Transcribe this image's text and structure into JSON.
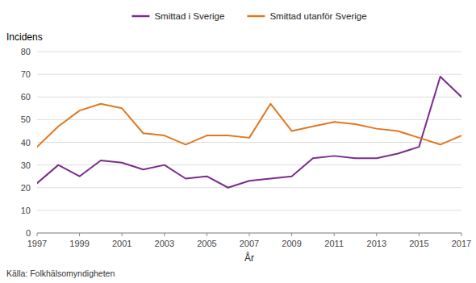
{
  "chart_data": {
    "type": "line",
    "ylabel": "Incidens",
    "xlabel": "År",
    "annotations": [
      "Källa: Folkhälsomyndigheten"
    ],
    "x": [
      1997,
      1998,
      1999,
      2000,
      2001,
      2002,
      2003,
      2004,
      2005,
      2006,
      2007,
      2008,
      2009,
      2010,
      2011,
      2012,
      2013,
      2014,
      2015,
      2016,
      2017
    ],
    "series": [
      {
        "name": "Smittad i Sverige",
        "color": "#7B2D8B",
        "values": [
          22,
          30,
          25,
          32,
          31,
          28,
          30,
          24,
          25,
          20,
          23,
          24,
          25,
          33,
          34,
          33,
          33,
          35,
          38,
          69,
          60
        ]
      },
      {
        "name": "Smittad utanför Sverige",
        "color": "#E07820",
        "values": [
          38,
          47,
          54,
          57,
          55,
          44,
          43,
          39,
          43,
          43,
          42,
          57,
          45,
          47,
          49,
          48,
          46,
          45,
          42,
          39,
          43
        ]
      }
    ],
    "xlim": [
      1997,
      2017
    ],
    "xticks": [
      1997,
      1999,
      2001,
      2003,
      2005,
      2007,
      2009,
      2011,
      2013,
      2015,
      2017
    ],
    "ylim": [
      0,
      80
    ],
    "yticks": [
      0,
      10,
      20,
      30,
      40,
      50,
      60,
      70,
      80
    ],
    "grid": true,
    "legend": "top"
  }
}
